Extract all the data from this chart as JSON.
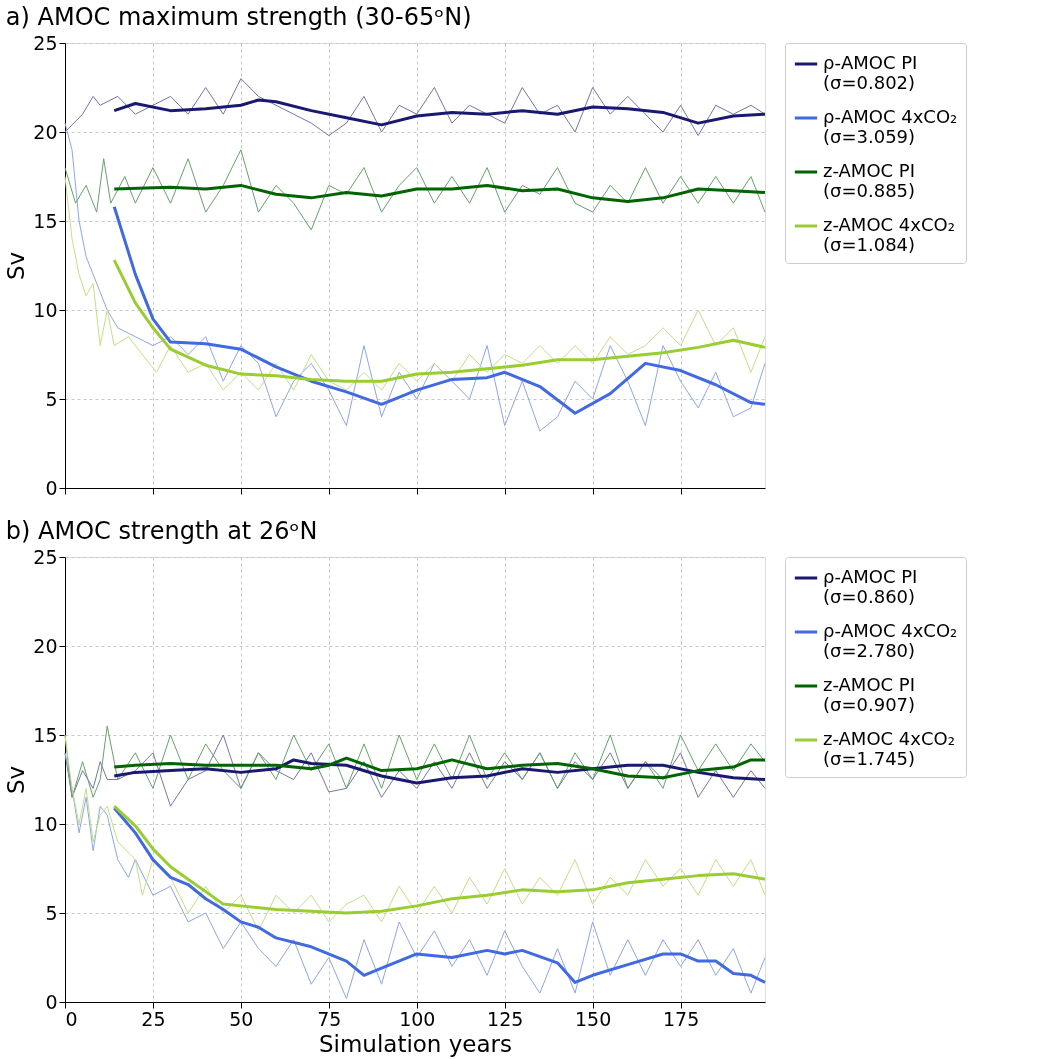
{
  "chart_data": [
    {
      "type": "line",
      "title": "a) AMOC maximum strength (30-65ᵒN)",
      "ylabel": "Sv",
      "xlim": [
        0,
        199
      ],
      "ylim": [
        0,
        25
      ],
      "xticks": [
        0,
        25,
        50,
        75,
        100,
        125,
        150,
        175
      ],
      "yticks": [
        0,
        5,
        10,
        15,
        20,
        25
      ],
      "grid": true,
      "legend": "top right",
      "tick_labels": "y",
      "line_style": "solid",
      "marker": "none",
      "series": [
        {
          "color": "#7575a9",
          "x": [
            0,
            5,
            8,
            10,
            15,
            20,
            25,
            30,
            35,
            40,
            45,
            50,
            55,
            60,
            65,
            70,
            75,
            80,
            85,
            90,
            95,
            100,
            105,
            110,
            115,
            120,
            125,
            130,
            135,
            140,
            145,
            150,
            155,
            160,
            165,
            170,
            175,
            180,
            185,
            190,
            195,
            199
          ],
          "values": [
            20,
            21,
            22,
            21.5,
            22,
            21,
            21.5,
            22,
            21,
            22.5,
            21,
            23,
            22,
            21.5,
            21,
            20.5,
            19.8,
            20.5,
            22,
            20,
            21.5,
            21,
            22.5,
            20.5,
            21.5,
            21,
            20.5,
            22.5,
            21,
            21.5,
            20,
            22.5,
            21,
            22,
            21,
            20,
            21.5,
            19.8,
            21.5,
            21,
            21.5,
            21
          ]
        },
        {
          "color": "#8da5ed",
          "x": [
            0,
            2,
            4,
            6,
            8,
            10,
            12,
            15,
            20,
            25,
            30,
            35,
            40,
            45,
            50,
            55,
            60,
            65,
            70,
            75,
            80,
            85,
            90,
            95,
            100,
            105,
            110,
            115,
            120,
            125,
            130,
            135,
            140,
            145,
            150,
            155,
            160,
            165,
            170,
            175,
            180,
            185,
            190,
            195,
            199
          ],
          "values": [
            20.5,
            19,
            15,
            13,
            12,
            11,
            10,
            9,
            8.5,
            8,
            8.5,
            7.5,
            8.5,
            6,
            8,
            7,
            4,
            6,
            7,
            5.5,
            3.5,
            8,
            4,
            6.5,
            5,
            7,
            6,
            5,
            8,
            3.5,
            6,
            3.2,
            4,
            6,
            5,
            8,
            6,
            3.5,
            8,
            6,
            4.5,
            6.5,
            4,
            4.5,
            7
          ]
        },
        {
          "color": "#66a266",
          "x": [
            0,
            3,
            6,
            9,
            11,
            13,
            17,
            20,
            25,
            30,
            35,
            40,
            45,
            50,
            55,
            60,
            65,
            70,
            75,
            80,
            85,
            90,
            95,
            100,
            105,
            110,
            115,
            120,
            125,
            130,
            135,
            140,
            145,
            150,
            155,
            160,
            165,
            170,
            175,
            180,
            185,
            190,
            195,
            199
          ],
          "values": [
            18,
            16,
            17,
            15.5,
            18.5,
            16,
            17.5,
            16,
            18,
            16,
            18.5,
            15.5,
            17,
            19,
            15.5,
            17,
            16,
            14.5,
            17,
            16.5,
            18,
            15.5,
            17,
            18,
            16,
            17.5,
            16,
            18,
            15.5,
            17,
            16.5,
            18,
            16,
            15.5,
            17,
            16,
            18,
            16,
            17.5,
            16,
            17.5,
            16,
            17.5,
            15.5
          ]
        },
        {
          "color": "#c2e184",
          "x": [
            0,
            2,
            4,
            6,
            8,
            10,
            12,
            14,
            18,
            22,
            26,
            30,
            35,
            40,
            45,
            50,
            55,
            60,
            65,
            70,
            75,
            80,
            85,
            90,
            95,
            100,
            105,
            110,
            115,
            120,
            125,
            130,
            135,
            140,
            145,
            150,
            155,
            160,
            165,
            170,
            175,
            180,
            185,
            190,
            195,
            199
          ],
          "values": [
            17.5,
            14,
            12,
            10.8,
            11.5,
            8,
            10,
            8,
            8.5,
            7.5,
            6.5,
            8,
            6.5,
            7,
            5.5,
            6.5,
            5.5,
            7,
            5.5,
            7.5,
            6,
            5.5,
            6.5,
            5.5,
            7,
            6,
            7,
            6,
            7.5,
            6.5,
            7.5,
            7,
            8,
            7,
            8,
            7,
            8.5,
            7.5,
            8,
            9,
            8,
            10,
            8,
            9,
            6.5,
            8.5
          ]
        },
        {
          "name": "ρ-AMOC PI\n(σ=0.802)",
          "color": "#191970",
          "x": [
            14,
            20,
            30,
            40,
            50,
            55,
            60,
            70,
            80,
            90,
            100,
            110,
            120,
            130,
            140,
            150,
            160,
            170,
            180,
            190,
            199
          ],
          "values": [
            21.2,
            21.6,
            21.2,
            21.3,
            21.5,
            21.8,
            21.7,
            21.2,
            20.8,
            20.4,
            20.9,
            21.1,
            21.0,
            21.2,
            21.0,
            21.4,
            21.3,
            21.1,
            20.5,
            20.9,
            21.0
          ]
        },
        {
          "name": "ρ-AMOC 4xCO₂\n(σ=3.059)",
          "color": "#4169e1",
          "x": [
            14,
            20,
            25,
            30,
            40,
            50,
            60,
            70,
            80,
            90,
            100,
            110,
            120,
            125,
            135,
            145,
            155,
            165,
            175,
            185,
            195,
            199
          ],
          "values": [
            15.8,
            12,
            9.5,
            8.2,
            8.1,
            7.8,
            6.8,
            6.0,
            5.4,
            4.7,
            5.5,
            6.1,
            6.2,
            6.5,
            5.7,
            4.2,
            5.3,
            7.0,
            6.6,
            5.8,
            4.8,
            4.7
          ]
        },
        {
          "name": "z-AMOC PI\n(σ=0.885)",
          "color": "#006400",
          "x": [
            14,
            30,
            40,
            50,
            60,
            70,
            80,
            90,
            100,
            110,
            120,
            130,
            140,
            150,
            160,
            170,
            180,
            190,
            199
          ],
          "values": [
            16.8,
            16.9,
            16.8,
            17.0,
            16.5,
            16.3,
            16.6,
            16.4,
            16.8,
            16.8,
            17.0,
            16.7,
            16.8,
            16.3,
            16.1,
            16.3,
            16.8,
            16.7,
            16.6
          ]
        },
        {
          "name": "z-AMOC 4xCO₂\n(σ=1.084)",
          "color": "#9acd32",
          "x": [
            14,
            20,
            25,
            30,
            40,
            50,
            60,
            70,
            80,
            90,
            100,
            110,
            120,
            130,
            140,
            150,
            160,
            170,
            180,
            190,
            199
          ],
          "values": [
            12.8,
            10.4,
            9.0,
            7.8,
            6.9,
            6.4,
            6.3,
            6.1,
            6.0,
            6.0,
            6.4,
            6.5,
            6.7,
            6.9,
            7.2,
            7.2,
            7.4,
            7.6,
            7.9,
            8.3,
            7.9
          ]
        }
      ]
    },
    {
      "type": "line",
      "title": "b) AMOC strength at 26ᵒN",
      "xlabel": "Simulation years",
      "ylabel": "Sv",
      "xlim": [
        0,
        199
      ],
      "ylim": [
        0,
        25
      ],
      "xticks": [
        0,
        25,
        50,
        75,
        100,
        125,
        150,
        175
      ],
      "yticks": [
        0,
        5,
        10,
        15,
        20,
        25
      ],
      "grid": true,
      "legend": "top right",
      "line_style": "solid",
      "marker": "none",
      "series": [
        {
          "color": "#7575a9",
          "x": [
            0,
            2,
            5,
            8,
            10,
            12,
            15,
            20,
            25,
            30,
            35,
            40,
            45,
            50,
            55,
            60,
            65,
            70,
            75,
            80,
            85,
            90,
            95,
            100,
            105,
            110,
            115,
            120,
            125,
            130,
            135,
            140,
            145,
            150,
            155,
            160,
            165,
            170,
            175,
            180,
            185,
            190,
            195,
            199
          ],
          "values": [
            14,
            11.5,
            13,
            12,
            13.5,
            12.5,
            12.5,
            13,
            14,
            11,
            12.5,
            13,
            15,
            12,
            14,
            13,
            12.5,
            14,
            11.8,
            12,
            13.5,
            11.5,
            13,
            12,
            13.5,
            12,
            14,
            12,
            13.5,
            12.5,
            14,
            12,
            13.5,
            12.5,
            14,
            12,
            13.5,
            12.5,
            14,
            11.5,
            13,
            11.5,
            13,
            12
          ]
        },
        {
          "color": "#8da5ed",
          "x": [
            0,
            2,
            4,
            6,
            8,
            10,
            12,
            15,
            18,
            20,
            25,
            30,
            35,
            40,
            45,
            50,
            55,
            60,
            65,
            70,
            75,
            80,
            85,
            90,
            95,
            100,
            105,
            110,
            115,
            120,
            125,
            130,
            135,
            140,
            145,
            150,
            155,
            160,
            165,
            170,
            175,
            180,
            185,
            190,
            195,
            199
          ],
          "values": [
            14,
            12,
            9.5,
            11.5,
            8.5,
            11,
            10.5,
            8,
            7,
            8,
            6,
            6.5,
            4.5,
            5,
            3,
            4.5,
            3,
            2,
            3.5,
            1,
            2.5,
            0.2,
            3.5,
            1,
            4.5,
            2.5,
            4,
            2,
            3.5,
            1.5,
            4,
            2,
            0.5,
            3,
            0.5,
            4.5,
            1.5,
            3.5,
            1.5,
            3.5,
            2,
            3.5,
            1.5,
            3,
            0.5,
            2.5
          ]
        },
        {
          "color": "#66a266",
          "x": [
            0,
            2,
            5,
            8,
            10,
            12,
            15,
            20,
            25,
            30,
            35,
            40,
            45,
            50,
            55,
            60,
            65,
            70,
            75,
            80,
            85,
            90,
            95,
            100,
            105,
            110,
            115,
            120,
            125,
            130,
            135,
            140,
            145,
            150,
            155,
            160,
            165,
            170,
            175,
            180,
            185,
            190,
            195,
            199
          ],
          "values": [
            15,
            11.5,
            13.5,
            11.5,
            12.5,
            15.5,
            12.5,
            14,
            12,
            15,
            12.5,
            14.5,
            13,
            12,
            14,
            12.5,
            15,
            13,
            14.5,
            12,
            14.5,
            12,
            15,
            12.5,
            14.5,
            12.5,
            15,
            12.5,
            14,
            12.5,
            14,
            12,
            14,
            12.5,
            15,
            12,
            13.5,
            12,
            15,
            13,
            14.5,
            13,
            14.5,
            13.5
          ]
        },
        {
          "color": "#c2e184",
          "x": [
            0,
            2,
            4,
            6,
            8,
            10,
            12,
            15,
            20,
            22,
            25,
            30,
            35,
            40,
            45,
            50,
            55,
            60,
            65,
            70,
            75,
            80,
            85,
            90,
            95,
            100,
            105,
            110,
            115,
            120,
            125,
            130,
            135,
            140,
            145,
            150,
            155,
            160,
            165,
            170,
            175,
            180,
            185,
            190,
            195,
            199
          ],
          "values": [
            15,
            12,
            10,
            12,
            9,
            10.5,
            11,
            9,
            8,
            6,
            8,
            7,
            5,
            6.5,
            5,
            6,
            4,
            6,
            5,
            6,
            4.5,
            5.5,
            6,
            4.5,
            6.5,
            5,
            6.5,
            5,
            7,
            5.5,
            7.5,
            5.5,
            7,
            6,
            8,
            5.5,
            7,
            6,
            8,
            6.5,
            7.5,
            6,
            8,
            6.5,
            8,
            6
          ]
        },
        {
          "name": "ρ-AMOC PI\n(σ=0.860)",
          "color": "#191970",
          "x": [
            14,
            20,
            30,
            40,
            50,
            60,
            65,
            70,
            80,
            90,
            100,
            110,
            120,
            130,
            140,
            150,
            160,
            170,
            180,
            190,
            199
          ],
          "values": [
            12.7,
            12.9,
            13.0,
            13.1,
            12.9,
            13.1,
            13.6,
            13.4,
            13.3,
            12.7,
            12.3,
            12.6,
            12.7,
            13.1,
            12.9,
            13.1,
            13.3,
            13.3,
            12.9,
            12.6,
            12.5
          ]
        },
        {
          "name": "ρ-AMOC 4xCO₂\n(σ=2.780)",
          "color": "#4169e1",
          "x": [
            14,
            20,
            25,
            30,
            35,
            40,
            45,
            50,
            55,
            60,
            70,
            80,
            85,
            90,
            100,
            110,
            120,
            125,
            130,
            140,
            145,
            150,
            160,
            170,
            175,
            180,
            185,
            190,
            195,
            199
          ],
          "values": [
            10.9,
            9.5,
            8.0,
            7.0,
            6.6,
            5.8,
            5.2,
            4.5,
            4.2,
            3.6,
            3.1,
            2.3,
            1.5,
            1.9,
            2.7,
            2.5,
            2.9,
            2.7,
            2.9,
            2.2,
            1.1,
            1.5,
            2.1,
            2.7,
            2.7,
            2.3,
            2.3,
            1.6,
            1.5,
            1.1
          ]
        },
        {
          "name": "z-AMOC PI\n(σ=0.907)",
          "color": "#006400",
          "x": [
            14,
            20,
            30,
            40,
            50,
            60,
            70,
            75,
            80,
            90,
            100,
            110,
            120,
            130,
            140,
            150,
            160,
            170,
            180,
            190,
            195,
            199
          ],
          "values": [
            13.2,
            13.3,
            13.4,
            13.3,
            13.3,
            13.3,
            13.1,
            13.3,
            13.7,
            13.0,
            13.1,
            13.6,
            13.1,
            13.3,
            13.4,
            13.1,
            12.7,
            12.6,
            13.0,
            13.2,
            13.6,
            13.6
          ]
        },
        {
          "name": "z-AMOC 4xCO₂\n(σ=1.745)",
          "color": "#9acd32",
          "x": [
            14,
            20,
            25,
            30,
            35,
            40,
            45,
            50,
            60,
            70,
            80,
            90,
            100,
            110,
            120,
            130,
            140,
            150,
            160,
            170,
            180,
            190,
            199
          ],
          "values": [
            11.0,
            9.9,
            8.6,
            7.6,
            6.9,
            6.2,
            5.5,
            5.4,
            5.2,
            5.1,
            5.0,
            5.1,
            5.4,
            5.8,
            6.0,
            6.3,
            6.2,
            6.3,
            6.7,
            6.9,
            7.1,
            7.2,
            6.9
          ]
        }
      ]
    }
  ]
}
